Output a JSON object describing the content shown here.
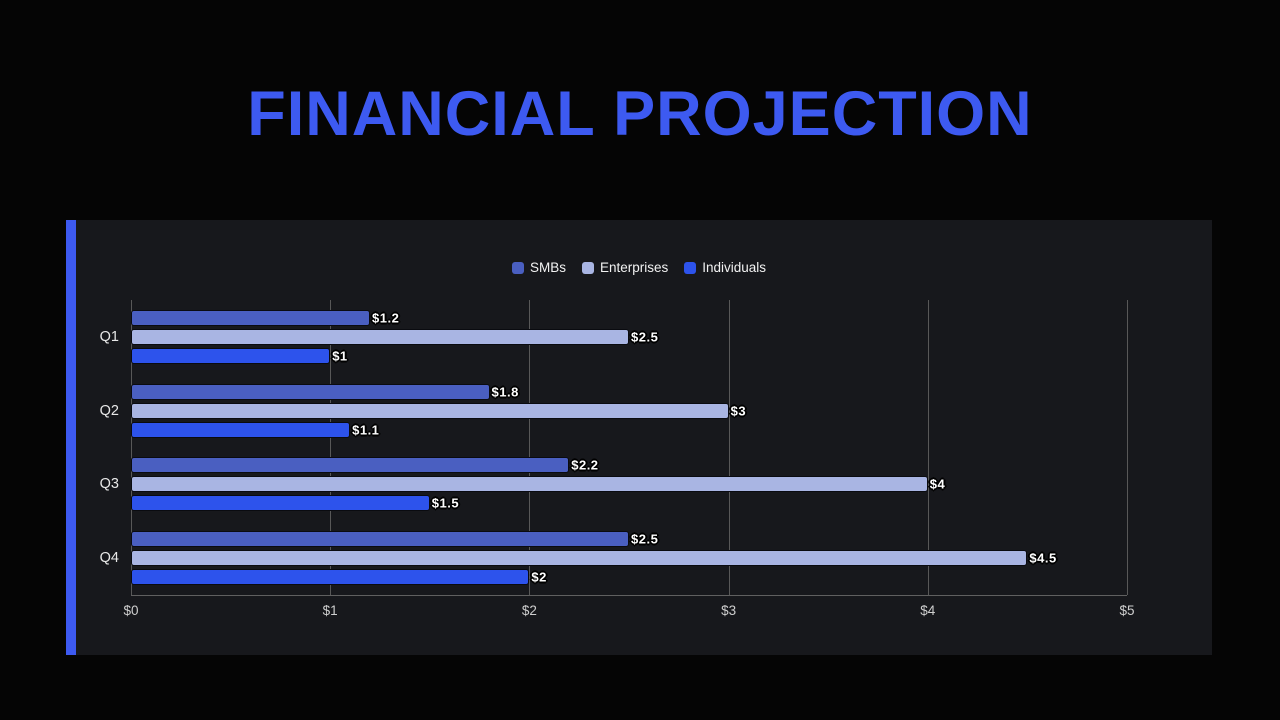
{
  "page": {
    "title": "FINANCIAL PROJECTION",
    "accent_color": "#3d5af1",
    "background_color": "#050505",
    "panel_color": "#17181c"
  },
  "chart_data": {
    "type": "bar",
    "orientation": "horizontal",
    "title": "FINANCIAL PROJECTION",
    "categories": [
      "Q1",
      "Q2",
      "Q3",
      "Q4"
    ],
    "series": [
      {
        "name": "SMBs",
        "color": "#4a5fc1",
        "values": [
          1.2,
          1.8,
          2.2,
          2.5
        ],
        "labels": [
          "$1.2",
          "$1.8",
          "$2.2",
          "$2.5"
        ]
      },
      {
        "name": "Enterprises",
        "color": "#a9b5e3",
        "values": [
          2.5,
          3.0,
          4.0,
          4.5
        ],
        "labels": [
          "$2.5",
          "$3",
          "$4",
          "$4.5"
        ]
      },
      {
        "name": "Individuals",
        "color": "#2d53ec",
        "values": [
          1.0,
          1.1,
          1.5,
          2.0
        ],
        "labels": [
          "$1",
          "$1.1",
          "$1.5",
          "$2"
        ]
      }
    ],
    "x_ticks": [
      "$0",
      "$1",
      "$2",
      "$3",
      "$4",
      "$5"
    ],
    "xlim": [
      0,
      5
    ],
    "grid": true,
    "legend_position": "top-center",
    "xlabel": "",
    "ylabel": ""
  }
}
